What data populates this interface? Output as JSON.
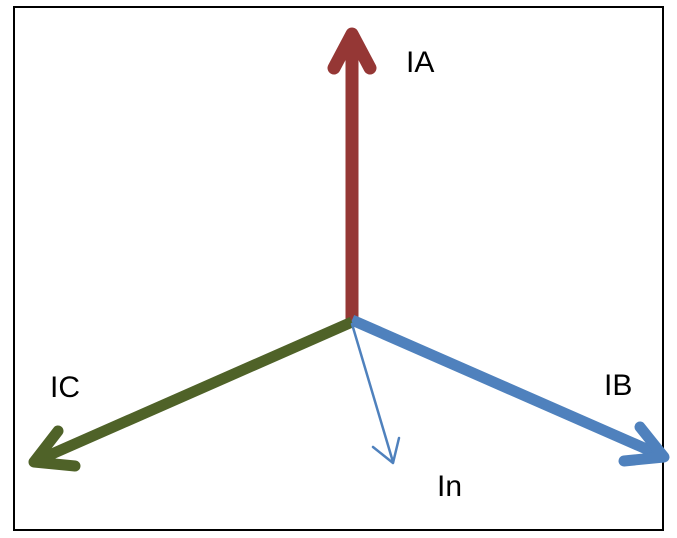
{
  "diagram": {
    "phasors": [
      {
        "id": "ia",
        "label": "IA",
        "color": "#953735"
      },
      {
        "id": "ib",
        "label": "IB",
        "color": "#4f81bd"
      },
      {
        "id": "ic",
        "label": "IC",
        "color": "#4f6228"
      },
      {
        "id": "in",
        "label": "In",
        "color": "#4f81bd"
      }
    ]
  }
}
